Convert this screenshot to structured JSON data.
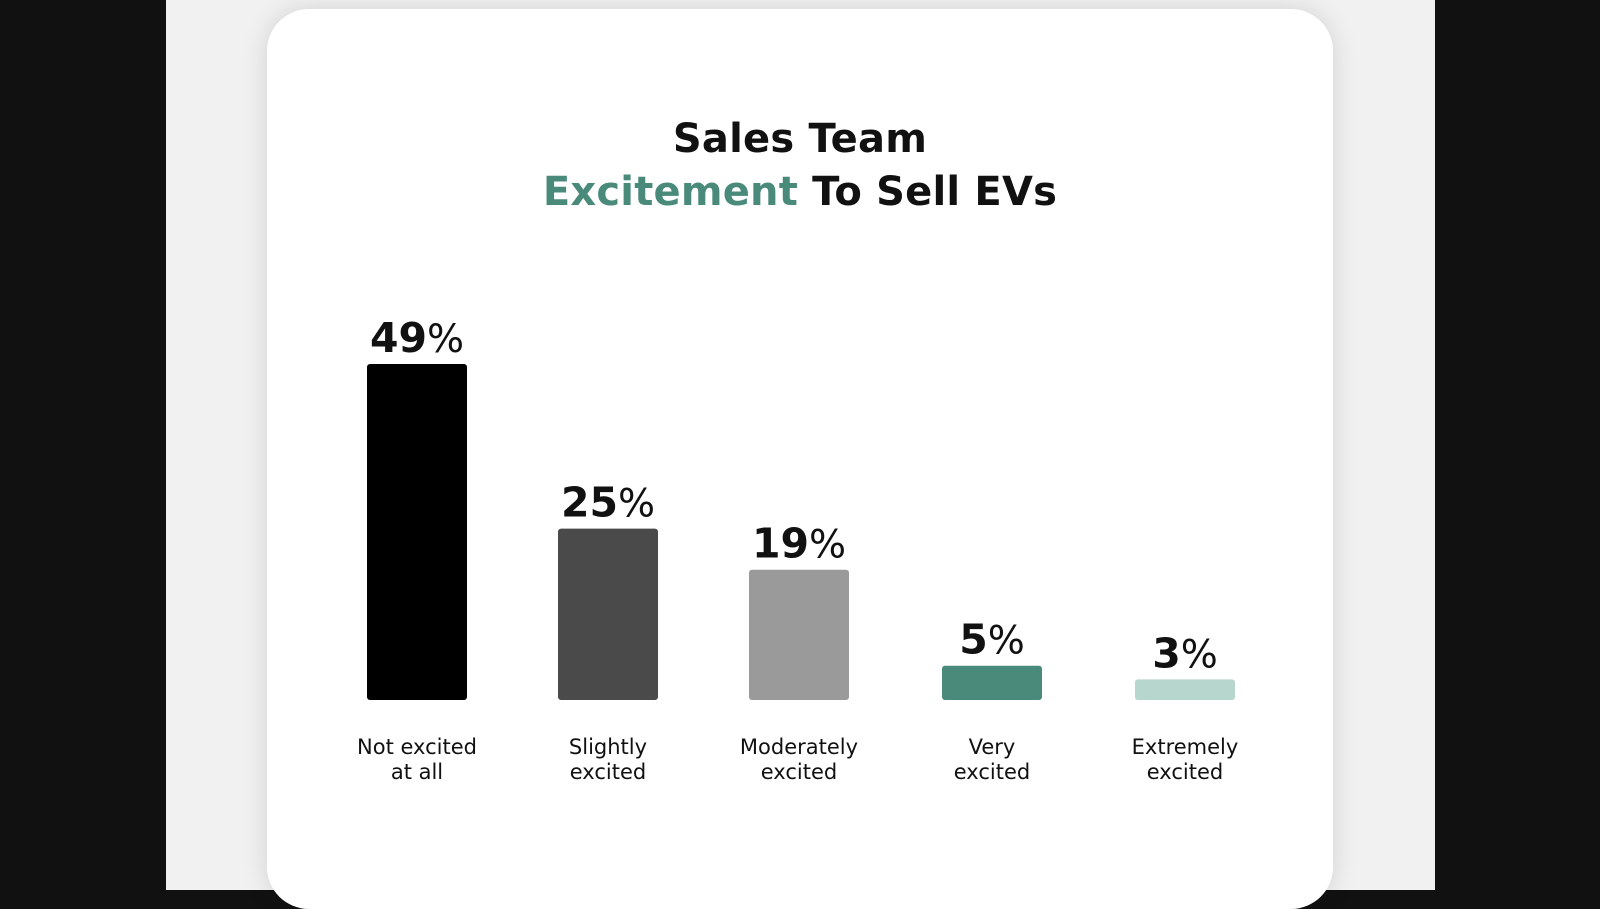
{
  "title": {
    "line1": "Sales Team",
    "line2_accent": "Excitement",
    "line2_rest": " To Sell EVs"
  },
  "colors": {
    "accent": "#4a8a7a",
    "bars": [
      "#000000",
      "#4a4a4a",
      "#9a9a9a",
      "#4a8a7a",
      "#b7d6cd"
    ]
  },
  "chart_data": {
    "type": "bar",
    "title": "Sales Team Excitement To Sell EVs",
    "categories": [
      [
        "Not excited",
        "at all"
      ],
      [
        "Slightly",
        "excited"
      ],
      [
        "Moderately",
        "excited"
      ],
      [
        "Very",
        "excited"
      ],
      [
        "Extremely",
        "excited"
      ]
    ],
    "values": [
      49,
      25,
      19,
      5,
      3
    ],
    "value_suffix": "%",
    "ylim": [
      0,
      49
    ],
    "grid": false,
    "legend": "none"
  }
}
